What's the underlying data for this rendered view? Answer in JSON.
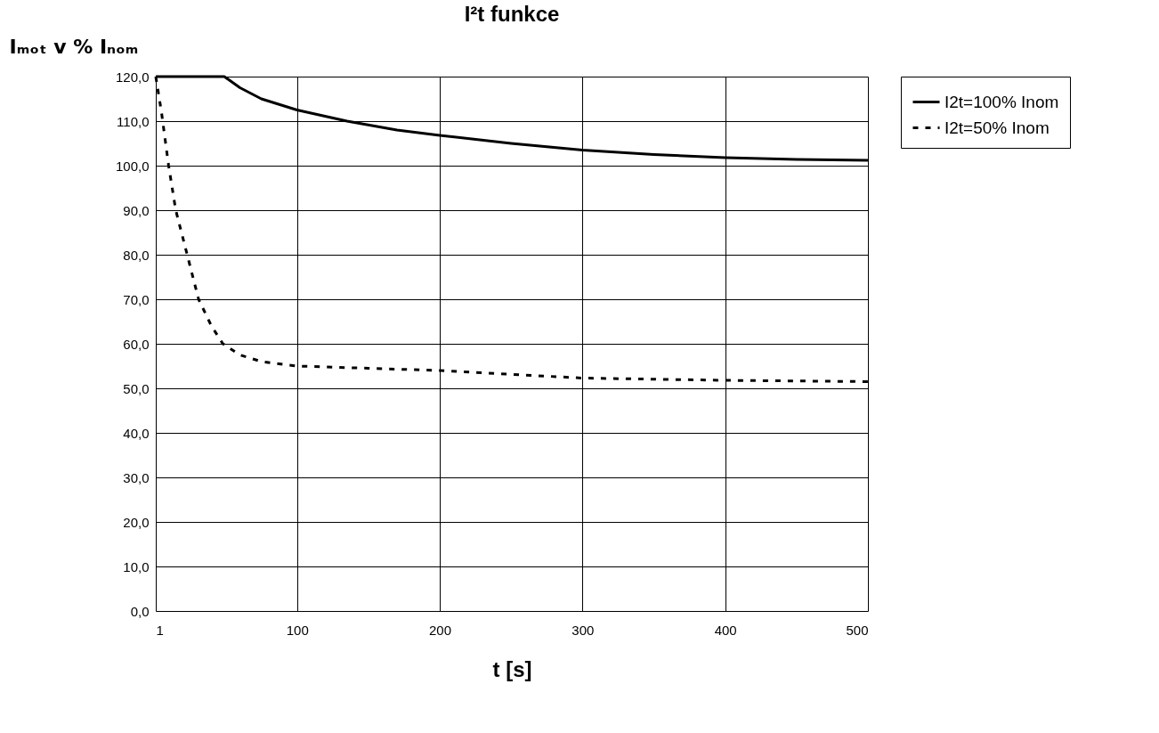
{
  "chart_data": {
    "type": "line",
    "title": "I²t funkce",
    "xlabel": "t [s]",
    "ylabel": "Iₘₒₜ v % Iₙₒₘ",
    "xlim": [
      1,
      500
    ],
    "xticks": [
      1,
      100,
      200,
      300,
      400,
      500
    ],
    "ylim": [
      0,
      120
    ],
    "yticks": [
      {
        "value": 0,
        "label": "0,0"
      },
      {
        "value": 10,
        "label": "10,0"
      },
      {
        "value": 20,
        "label": "20,0"
      },
      {
        "value": 30,
        "label": "30,0"
      },
      {
        "value": 40,
        "label": "40,0"
      },
      {
        "value": 50,
        "label": "50,0"
      },
      {
        "value": 60,
        "label": "60,0"
      },
      {
        "value": 70,
        "label": "70,0"
      },
      {
        "value": 80,
        "label": "80,0"
      },
      {
        "value": 90,
        "label": "90,0"
      },
      {
        "value": 100,
        "label": "100,0"
      },
      {
        "value": 110,
        "label": "110,0"
      },
      {
        "value": 120,
        "label": "120,0"
      }
    ],
    "grid": true,
    "legend": "right",
    "marker": "none",
    "series": [
      {
        "name": "I2t=100% Inom",
        "color": "#000000",
        "line_style": "solid",
        "x": [
          1,
          49,
          60,
          75,
          100,
          135,
          170,
          200,
          250,
          300,
          350,
          400,
          450,
          500
        ],
        "values": [
          120,
          120,
          117.5,
          115,
          112.5,
          110,
          108,
          106.8,
          105,
          103.5,
          102.5,
          101.8,
          101.4,
          101.2
        ]
      },
      {
        "name": "I2t=50% Inom",
        "color": "#000000",
        "line_style": "dashed",
        "x": [
          1,
          5,
          10,
          15,
          23,
          31,
          40,
          48,
          60,
          75,
          100,
          150,
          200,
          300,
          400,
          500
        ],
        "values": [
          120,
          112,
          100,
          90,
          80,
          70,
          64,
          60,
          57.5,
          56,
          55,
          54.5,
          54,
          52.3,
          51.8,
          51.5
        ]
      }
    ]
  }
}
